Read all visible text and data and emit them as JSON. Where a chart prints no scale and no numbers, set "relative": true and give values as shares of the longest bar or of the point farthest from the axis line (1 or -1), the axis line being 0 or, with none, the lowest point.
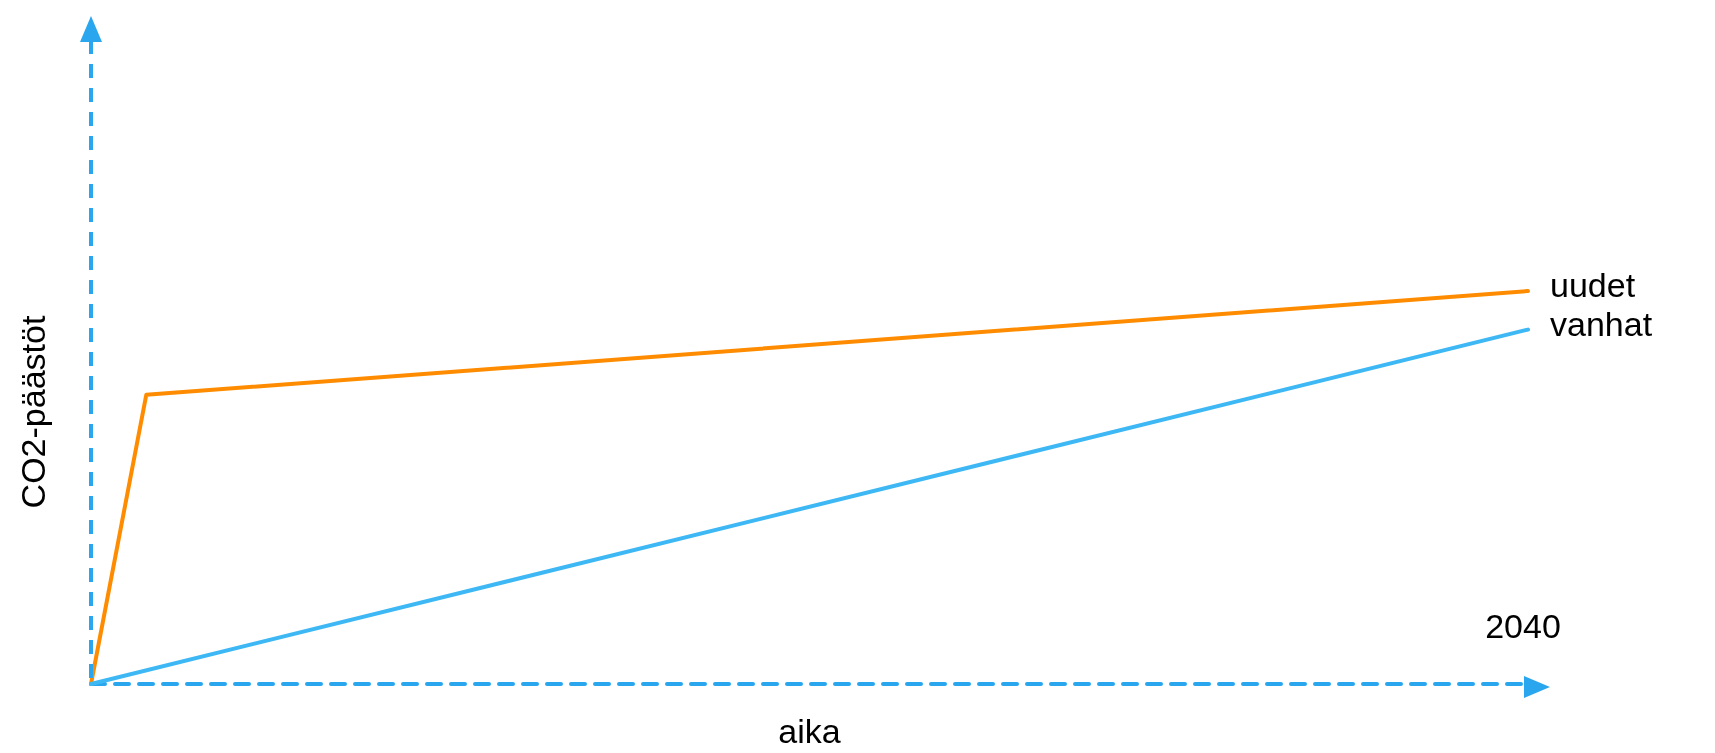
{
  "chart_data": {
    "type": "line",
    "relative": true,
    "xlabel": "aika",
    "ylabel": "CO2-päästöt",
    "annotations": [
      "2040"
    ],
    "legend": false,
    "grid": false,
    "marker": "none",
    "line_style": "solid",
    "categories": [
      null,
      null,
      null,
      null,
      null,
      null,
      null,
      null,
      null,
      null,
      null,
      null,
      null,
      null,
      null,
      null,
      null,
      null,
      null,
      null,
      null,
      null,
      null,
      null,
      null,
      null,
      null
    ],
    "series": [
      {
        "name": "uudet",
        "color": "#ff8c00",
        "values": [
          0,
          0.736,
          null,
          null,
          null,
          null,
          null,
          null,
          null,
          null,
          null,
          null,
          null,
          null,
          null,
          null,
          null,
          null,
          null,
          null,
          null,
          null,
          null,
          null,
          null,
          null,
          1
        ]
      },
      {
        "name": "vanhat",
        "color": "#3db8f5",
        "values": [
          0,
          null,
          null,
          null,
          null,
          null,
          null,
          null,
          null,
          null,
          null,
          null,
          null,
          null,
          null,
          null,
          null,
          null,
          null,
          null,
          null,
          null,
          null,
          null,
          null,
          null,
          0.902
        ]
      }
    ]
  }
}
